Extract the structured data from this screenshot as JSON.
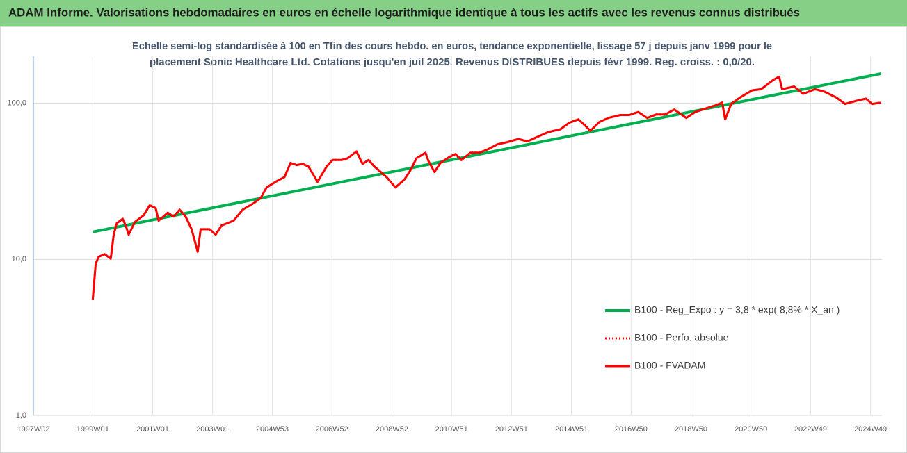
{
  "chart_data": {
    "type": "line",
    "title": "ADAM Informe. Valorisations hebdomadaires en euros en échelle logarithmique identique à tous les actifs avec les revenus connus distribués",
    "subtitle": [
      "Echelle semi-log standardisée à 100 en Tfin des cours hebdo. en euros, tendance exponentielle, lissage 57 j depuis janv 1999 pour le",
      "placement Sonic Healthcare Ltd. Cotations jusqu'en juil 2025. Revenus DISTRIBUES depuis févr 1999. Reg. croiss. : 0,0/20."
    ],
    "log_scale": true,
    "grid": true,
    "legend": "right",
    "xlim": [
      1997.02,
      2025.33
    ],
    "xticks": [
      {
        "value": 1997.02,
        "label": "1997W02"
      },
      {
        "value": 1999.0,
        "label": "1999W01"
      },
      {
        "value": 2001.0,
        "label": "2001W01"
      },
      {
        "value": 2003.0,
        "label": "2003W01"
      },
      {
        "value": 2004.99,
        "label": "2004W53"
      },
      {
        "value": 2006.98,
        "label": "2006W52"
      },
      {
        "value": 2008.98,
        "label": "2008W52"
      },
      {
        "value": 2010.97,
        "label": "2010W51"
      },
      {
        "value": 2012.97,
        "label": "2012W51"
      },
      {
        "value": 2014.97,
        "label": "2014W51"
      },
      {
        "value": 2016.96,
        "label": "2016W50"
      },
      {
        "value": 2018.96,
        "label": "2018W50"
      },
      {
        "value": 2020.96,
        "label": "2020W50"
      },
      {
        "value": 2022.95,
        "label": "2022W49"
      },
      {
        "value": 2024.95,
        "label": "2024W49"
      }
    ],
    "ylim": [
      1,
      200
    ],
    "yticks": [
      {
        "value": 1,
        "label": "1,0"
      },
      {
        "value": 10,
        "label": "10,0"
      },
      {
        "value": 100,
        "label": "100,0"
      }
    ],
    "series": [
      {
        "name": "B100 - Reg_Expo : y = 3,8 * exp( 8,8% *  X_an )",
        "color": "#00b050",
        "style": "solid",
        "width": 4,
        "x": [
          1999.0,
          2025.3
        ],
        "values": [
          15,
          155
        ]
      },
      {
        "name": "B100 - Perfo. absolue",
        "color": "#ff0000",
        "style": "dotted",
        "width": 3,
        "x": [
          1999.0,
          1999.1,
          1999.2,
          1999.4,
          1999.6,
          1999.7,
          1999.8,
          2000.0,
          2000.1,
          2000.2,
          2000.4,
          2000.7,
          2000.9,
          2001.1,
          2001.2,
          2001.5,
          2001.7,
          2001.9,
          2002.1,
          2002.3,
          2002.5,
          2002.6,
          2002.9,
          2003.1,
          2003.3,
          2003.7,
          2004.0,
          2004.4,
          2004.6,
          2004.8,
          2005.1,
          2005.4,
          2005.6,
          2005.8,
          2006.0,
          2006.2,
          2006.5,
          2006.8,
          2007.0,
          2007.3,
          2007.5,
          2007.8,
          2008.0,
          2008.2,
          2008.4,
          2008.8,
          2009.1,
          2009.4,
          2009.6,
          2009.8,
          2010.1,
          2010.2,
          2010.4,
          2010.6,
          2010.9,
          2011.1,
          2011.3,
          2011.6,
          2011.9,
          2012.2,
          2012.5,
          2012.8,
          2013.2,
          2013.5,
          2013.9,
          2014.2,
          2014.6,
          2014.9,
          2015.2,
          2015.4,
          2015.6,
          2015.9,
          2016.2,
          2016.6,
          2016.9,
          2017.2,
          2017.5,
          2017.8,
          2018.1,
          2018.4,
          2018.8,
          2019.1,
          2019.5,
          2019.8,
          2020.0,
          2020.1,
          2020.3,
          2020.6,
          2021.0,
          2021.3,
          2021.7,
          2021.9,
          2022.0,
          2022.4,
          2022.7,
          2023.1,
          2023.4,
          2023.8,
          2024.1,
          2024.5,
          2024.8,
          2025.0,
          2025.3
        ],
        "values": [
          5.5,
          9.4,
          10.4,
          10.8,
          10.1,
          14.4,
          17,
          18.2,
          16.5,
          14.4,
          17.3,
          19.2,
          22.2,
          21.3,
          17.7,
          19.9,
          18.8,
          20.8,
          18.8,
          15.6,
          11.2,
          15.6,
          15.6,
          14.4,
          16.5,
          17.7,
          20.8,
          23.1,
          24.7,
          28.9,
          31.4,
          33.7,
          41.5,
          40.2,
          40.9,
          39.3,
          31.4,
          39.3,
          43.3,
          43.3,
          44.4,
          49.1,
          40.9,
          43.3,
          39.3,
          33.7,
          28.9,
          32.5,
          37.2,
          44.4,
          48.2,
          42.7,
          36.3,
          41.5,
          45.3,
          47.3,
          43.3,
          48.2,
          48.2,
          50.9,
          54.6,
          56.2,
          59.1,
          57,
          61.7,
          65.4,
          68.1,
          75.1,
          78.9,
          72.8,
          66.6,
          75.8,
          80.6,
          84.1,
          84.1,
          87.9,
          80.6,
          84.8,
          84.8,
          91.2,
          80.6,
          87.9,
          93.3,
          97.3,
          101,
          78.9,
          99,
          109,
          121,
          123,
          141,
          148,
          123,
          128,
          115,
          123,
          119,
          109,
          99,
          104,
          107,
          99,
          101
        ]
      },
      {
        "name": "B100 - FVADAM",
        "color": "#ff0000",
        "style": "solid",
        "width": 3,
        "x": [
          1999.0,
          1999.1,
          1999.2,
          1999.4,
          1999.6,
          1999.7,
          1999.8,
          2000.0,
          2000.1,
          2000.2,
          2000.4,
          2000.7,
          2000.9,
          2001.1,
          2001.2,
          2001.5,
          2001.7,
          2001.9,
          2002.1,
          2002.3,
          2002.5,
          2002.6,
          2002.9,
          2003.1,
          2003.3,
          2003.7,
          2004.0,
          2004.4,
          2004.6,
          2004.8,
          2005.1,
          2005.4,
          2005.6,
          2005.8,
          2006.0,
          2006.2,
          2006.5,
          2006.8,
          2007.0,
          2007.3,
          2007.5,
          2007.8,
          2008.0,
          2008.2,
          2008.4,
          2008.8,
          2009.1,
          2009.4,
          2009.6,
          2009.8,
          2010.1,
          2010.2,
          2010.4,
          2010.6,
          2010.9,
          2011.1,
          2011.3,
          2011.6,
          2011.9,
          2012.2,
          2012.5,
          2012.8,
          2013.2,
          2013.5,
          2013.9,
          2014.2,
          2014.6,
          2014.9,
          2015.2,
          2015.4,
          2015.6,
          2015.9,
          2016.2,
          2016.6,
          2016.9,
          2017.2,
          2017.5,
          2017.8,
          2018.1,
          2018.4,
          2018.8,
          2019.1,
          2019.5,
          2019.8,
          2020.0,
          2020.1,
          2020.3,
          2020.6,
          2021.0,
          2021.3,
          2021.7,
          2021.9,
          2022.0,
          2022.4,
          2022.7,
          2023.1,
          2023.4,
          2023.8,
          2024.1,
          2024.5,
          2024.8,
          2025.0,
          2025.3
        ],
        "values": [
          5.5,
          9.4,
          10.4,
          10.8,
          10.1,
          14.4,
          17,
          18.2,
          16.5,
          14.4,
          17.3,
          19.2,
          22.2,
          21.3,
          17.7,
          19.9,
          18.8,
          20.8,
          18.8,
          15.6,
          11.2,
          15.6,
          15.6,
          14.4,
          16.5,
          17.7,
          20.8,
          23.1,
          24.7,
          28.9,
          31.4,
          33.7,
          41.5,
          40.2,
          40.9,
          39.3,
          31.4,
          39.3,
          43.3,
          43.3,
          44.4,
          49.1,
          40.9,
          43.3,
          39.3,
          33.7,
          28.9,
          32.5,
          37.2,
          44.4,
          48.2,
          42.7,
          36.3,
          41.5,
          45.3,
          47.3,
          43.3,
          48.2,
          48.2,
          50.9,
          54.6,
          56.2,
          59.1,
          57,
          61.7,
          65.4,
          68.1,
          75.1,
          78.9,
          72.8,
          66.6,
          75.8,
          80.6,
          84.1,
          84.1,
          87.9,
          80.6,
          84.8,
          84.8,
          91.2,
          80.6,
          87.9,
          93.3,
          97.3,
          101,
          78.9,
          99,
          109,
          121,
          123,
          141,
          148,
          123,
          128,
          115,
          123,
          119,
          109,
          99,
          104,
          107,
          99,
          101
        ]
      }
    ]
  }
}
